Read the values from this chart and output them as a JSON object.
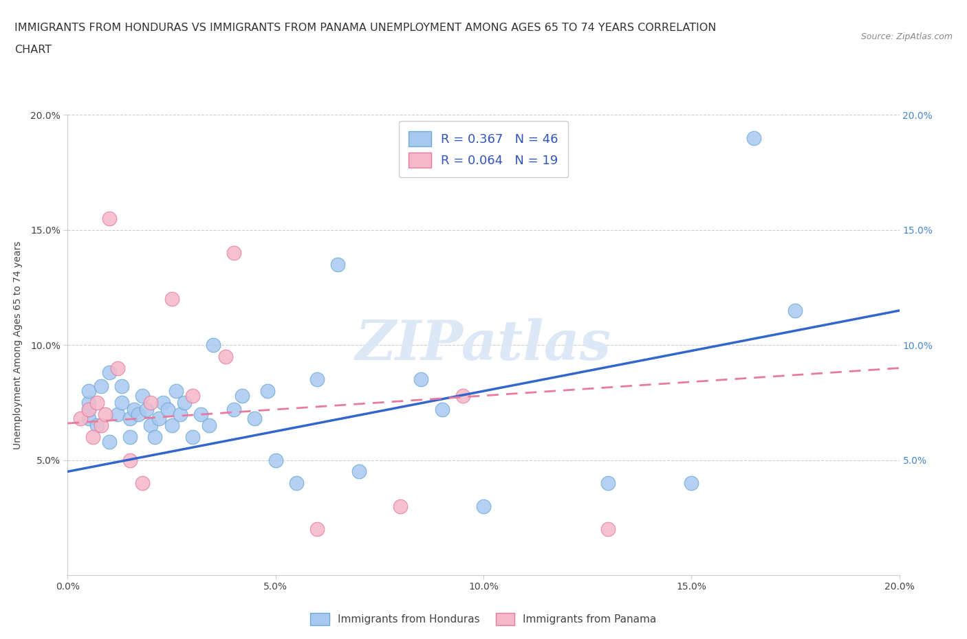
{
  "title_line1": "IMMIGRANTS FROM HONDURAS VS IMMIGRANTS FROM PANAMA UNEMPLOYMENT AMONG AGES 65 TO 74 YEARS CORRELATION",
  "title_line2": "CHART",
  "source_text": "Source: ZipAtlas.com",
  "ylabel": "Unemployment Among Ages 65 to 74 years",
  "xlim": [
    0.0,
    0.2
  ],
  "ylim": [
    0.0,
    0.2
  ],
  "xtick_labels": [
    "0.0%",
    "5.0%",
    "10.0%",
    "15.0%",
    "20.0%"
  ],
  "xtick_vals": [
    0.0,
    0.05,
    0.1,
    0.15,
    0.2
  ],
  "ytick_labels_left": [
    "5.0%",
    "10.0%",
    "15.0%",
    "20.0%"
  ],
  "ytick_labels_right": [
    "5.0%",
    "10.0%",
    "15.0%",
    "20.0%"
  ],
  "ytick_vals": [
    0.05,
    0.1,
    0.15,
    0.2
  ],
  "legend_R_honduras": "R = 0.367",
  "legend_N_honduras": "N = 46",
  "legend_R_panama": "R = 0.064",
  "legend_N_panama": "N = 19",
  "honduras_color": "#a8c8f0",
  "panama_color": "#f5b8c8",
  "honduras_edge_color": "#6aaad4",
  "panama_edge_color": "#e87a9f",
  "honduras_line_color": "#3366cc",
  "panama_line_color": "#e87a9f",
  "background_color": "#ffffff",
  "watermark_color": "#dce8f5",
  "grid_color": "#cccccc",
  "right_tick_color": "#4488cc",
  "title_fontsize": 11.5,
  "axis_label_fontsize": 10,
  "tick_fontsize": 10,
  "honduras_scatter_x": [
    0.005,
    0.005,
    0.005,
    0.005,
    0.007,
    0.008,
    0.01,
    0.01,
    0.012,
    0.013,
    0.013,
    0.015,
    0.015,
    0.016,
    0.017,
    0.018,
    0.019,
    0.02,
    0.021,
    0.022,
    0.023,
    0.024,
    0.025,
    0.026,
    0.027,
    0.028,
    0.03,
    0.032,
    0.034,
    0.035,
    0.04,
    0.042,
    0.045,
    0.048,
    0.05,
    0.055,
    0.06,
    0.065,
    0.07,
    0.085,
    0.09,
    0.1,
    0.13,
    0.15,
    0.165,
    0.175
  ],
  "honduras_scatter_y": [
    0.068,
    0.072,
    0.075,
    0.08,
    0.065,
    0.082,
    0.058,
    0.088,
    0.07,
    0.075,
    0.082,
    0.06,
    0.068,
    0.072,
    0.07,
    0.078,
    0.072,
    0.065,
    0.06,
    0.068,
    0.075,
    0.072,
    0.065,
    0.08,
    0.07,
    0.075,
    0.06,
    0.07,
    0.065,
    0.1,
    0.072,
    0.078,
    0.068,
    0.08,
    0.05,
    0.04,
    0.085,
    0.135,
    0.045,
    0.085,
    0.072,
    0.03,
    0.04,
    0.04,
    0.19,
    0.115
  ],
  "panama_scatter_x": [
    0.003,
    0.005,
    0.006,
    0.007,
    0.008,
    0.009,
    0.01,
    0.012,
    0.015,
    0.018,
    0.02,
    0.025,
    0.03,
    0.038,
    0.04,
    0.06,
    0.08,
    0.095,
    0.13
  ],
  "panama_scatter_y": [
    0.068,
    0.072,
    0.06,
    0.075,
    0.065,
    0.07,
    0.155,
    0.09,
    0.05,
    0.04,
    0.075,
    0.12,
    0.078,
    0.095,
    0.14,
    0.02,
    0.03,
    0.078,
    0.02
  ],
  "honduras_trendline_x": [
    0.0,
    0.2
  ],
  "honduras_trendline_y": [
    0.045,
    0.115
  ],
  "panama_trendline_x": [
    0.0,
    0.2
  ],
  "panama_trendline_y": [
    0.066,
    0.09
  ],
  "legend_label_honduras": "Immigrants from Honduras",
  "legend_label_panama": "Immigrants from Panama"
}
